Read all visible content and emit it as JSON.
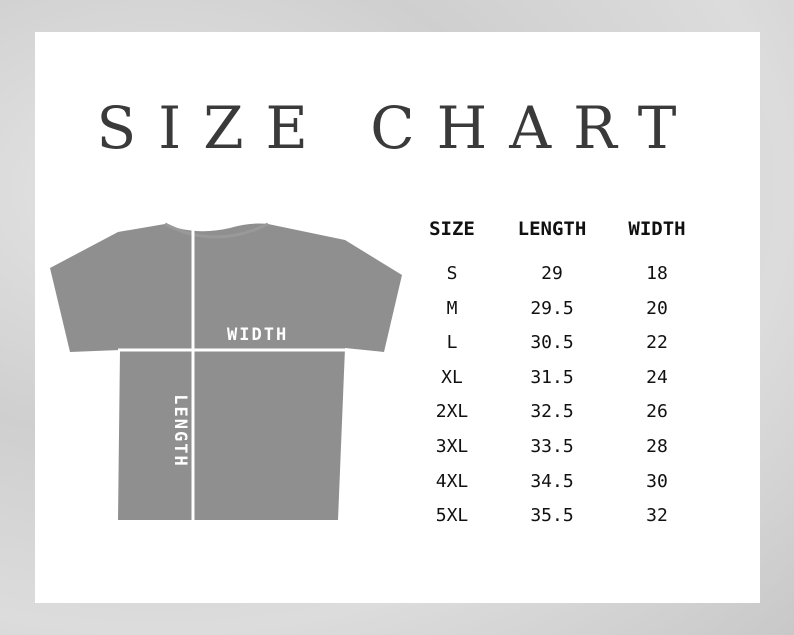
{
  "title": "SIZE CHART",
  "diagram": {
    "width_label": "WIDTH",
    "length_label": "LENGTH",
    "shirt_color": "#8f8f8f"
  },
  "table": {
    "headers": [
      "SIZE",
      "LENGTH",
      "WIDTH"
    ],
    "rows": [
      [
        "S",
        "29",
        "18"
      ],
      [
        "M",
        "29.5",
        "20"
      ],
      [
        "L",
        "30.5",
        "22"
      ],
      [
        "XL",
        "31.5",
        "24"
      ],
      [
        "2XL",
        "32.5",
        "26"
      ],
      [
        "3XL",
        "33.5",
        "28"
      ],
      [
        "4XL",
        "34.5",
        "30"
      ],
      [
        "5XL",
        "35.5",
        "32"
      ]
    ]
  }
}
